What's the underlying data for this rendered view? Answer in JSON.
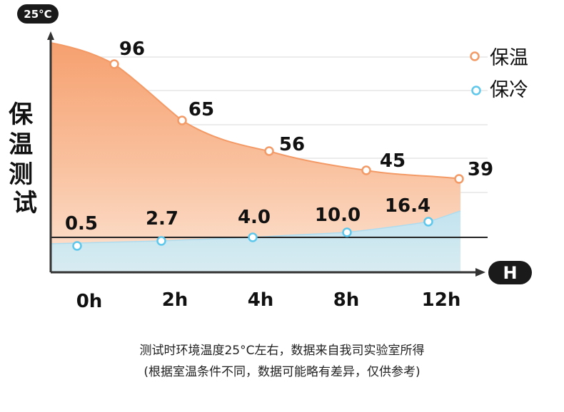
{
  "chart_data": {
    "type": "area",
    "unit_badge": "25°C",
    "ylabel": "保温测试",
    "xlabel": "H",
    "categories": [
      "0h",
      "2h",
      "4h",
      "8h",
      "12h"
    ],
    "series": [
      {
        "name": "保温",
        "color": "#f39a66",
        "values": [
          96,
          65,
          56,
          45,
          39
        ]
      },
      {
        "name": "保冷",
        "color": "#5ec7ec",
        "values": [
          0.5,
          2.7,
          4.0,
          10.0,
          16.4
        ]
      }
    ],
    "legend": "top-right",
    "grid": true
  },
  "notes": [
    "测试时环境温度25°C左右，数据来自我司实验室所得",
    "(根据室温条件不同，数据可能略有差异，仅供参考)"
  ]
}
